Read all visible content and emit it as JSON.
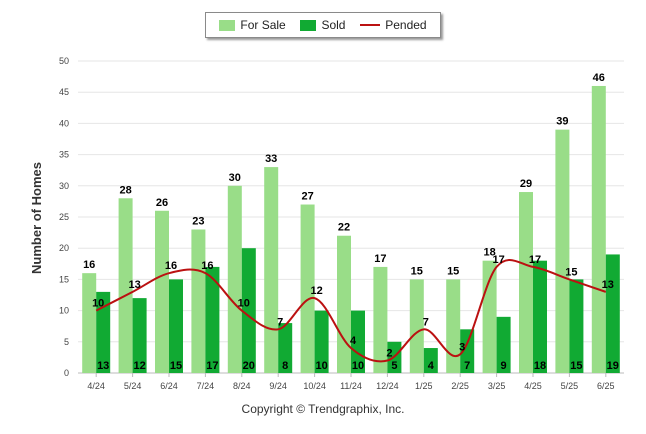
{
  "chart_data": {
    "type": "bar",
    "title": "",
    "xlabel": "",
    "ylabel": "Number of Homes",
    "ylim": [
      0,
      50
    ],
    "yticks": [
      0,
      5,
      10,
      15,
      20,
      25,
      30,
      35,
      40,
      45,
      50
    ],
    "grid": true,
    "legend_position": "top-center",
    "categories": [
      "4/24",
      "5/24",
      "6/24",
      "7/24",
      "8/24",
      "9/24",
      "10/24",
      "11/24",
      "12/24",
      "1/25",
      "2/25",
      "3/25",
      "4/25",
      "5/25",
      "6/25"
    ],
    "series": [
      {
        "name": "For Sale",
        "type": "bar",
        "color": "#99dd88",
        "values": [
          16,
          28,
          26,
          23,
          30,
          33,
          27,
          22,
          17,
          15,
          15,
          18,
          29,
          39,
          46
        ]
      },
      {
        "name": "Sold",
        "type": "bar",
        "color": "#11aa33",
        "values": [
          13,
          12,
          15,
          17,
          20,
          8,
          10,
          10,
          5,
          4,
          7,
          9,
          18,
          15,
          19
        ]
      },
      {
        "name": "Pended",
        "type": "line",
        "color": "#bb1111",
        "values": [
          10,
          13,
          16,
          16,
          10,
          7,
          12,
          4,
          2,
          7,
          3,
          17,
          17,
          15,
          13
        ]
      }
    ]
  },
  "footer": {
    "copyright": "Copyright © Trendgraphix, Inc."
  }
}
